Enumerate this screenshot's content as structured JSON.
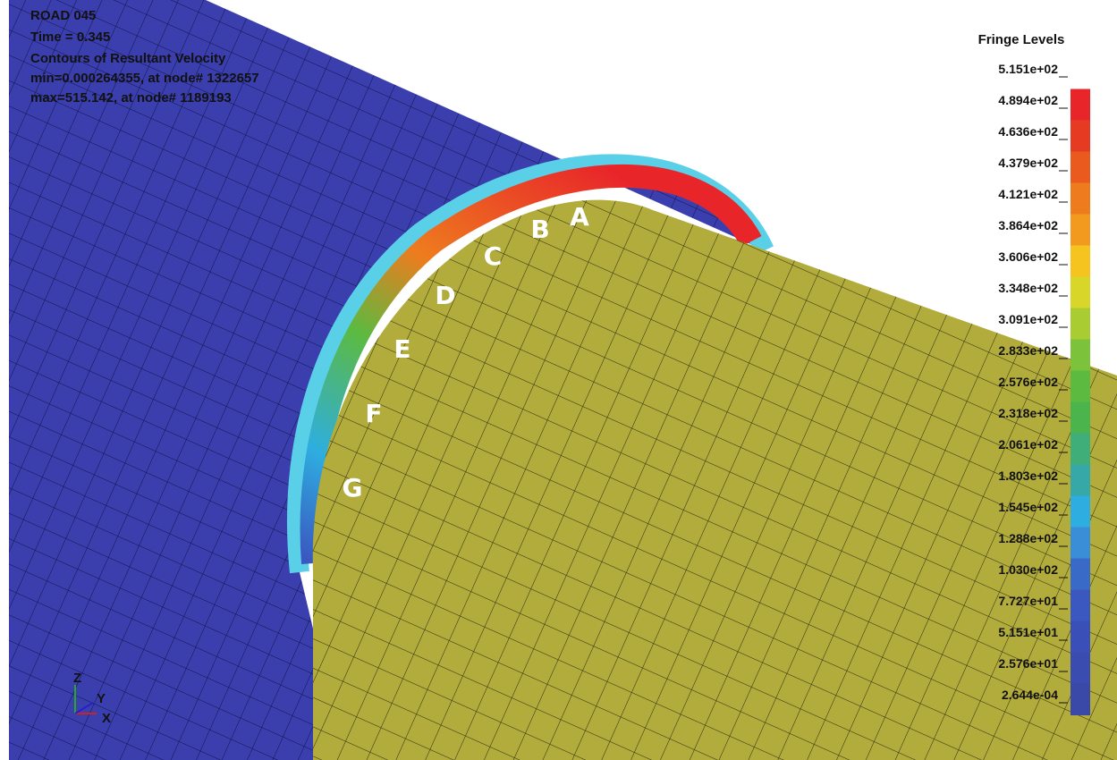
{
  "header": {
    "lines": [
      "ROAD 045",
      "Time =      0.345",
      "Contours of Resultant Velocity",
      "min=0.000264355, at node# 1322657",
      "max=515.142, at node# 1189193"
    ]
  },
  "legend": {
    "title": "Fringe Levels",
    "levels": [
      "5.151e+02",
      "4.894e+02",
      "4.636e+02",
      "4.379e+02",
      "4.121e+02",
      "3.864e+02",
      "3.606e+02",
      "3.348e+02",
      "3.091e+02",
      "2.833e+02",
      "2.576e+02",
      "2.318e+02",
      "2.061e+02",
      "1.803e+02",
      "1.545e+02",
      "1.288e+02",
      "1.030e+02",
      "7.727e+01",
      "5.151e+01",
      "2.576e+01",
      "2.644e-04"
    ],
    "colors": [
      "#e8262a",
      "#e63a22",
      "#ea5a1e",
      "#ee7c1e",
      "#f29a1e",
      "#f6c41e",
      "#d8d628",
      "#a8cc32",
      "#7cc23a",
      "#5cba40",
      "#4cb44c",
      "#40ae78",
      "#36a8a8",
      "#2eaee0",
      "#3a8ed8",
      "#3a6ac8",
      "#3a58c0",
      "#3a50b8",
      "#3a4cb0",
      "#3a48a8"
    ]
  },
  "points": [
    "A",
    "B",
    "C",
    "D",
    "E",
    "F",
    "G"
  ],
  "triad": [
    "Z",
    "Y",
    "X"
  ]
}
